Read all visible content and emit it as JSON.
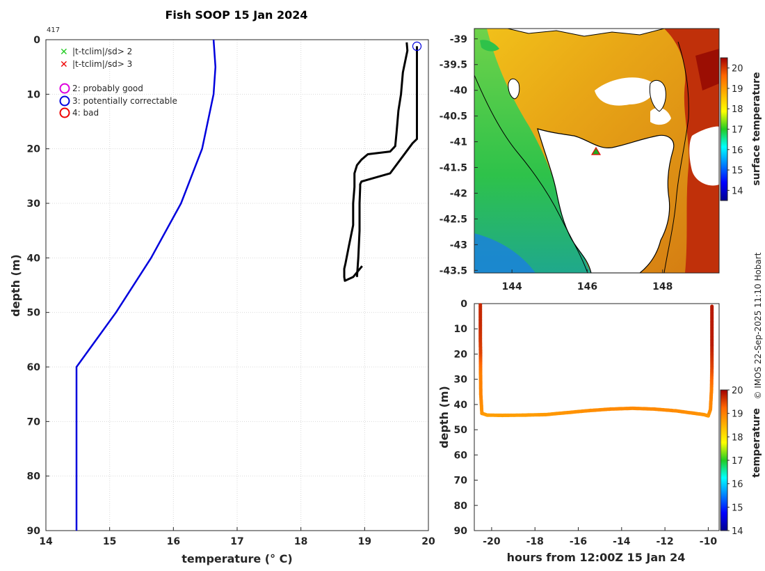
{
  "figure": {
    "title": "Fish SOOP 15 Jan 2024",
    "profile_count": "417",
    "credit": "© IMOS 22-Sep-2025 11:10 Hobart"
  },
  "colors": {
    "climatology": "#0000dd",
    "profile": "#000000",
    "coast": "#000000"
  },
  "chart_data": [
    {
      "type": "line",
      "name": "profile",
      "xlabel": "temperature (° C)",
      "ylabel": "depth (m)",
      "xlim": [
        14,
        20
      ],
      "ylim": [
        0,
        90
      ],
      "xticks": [
        "14",
        "15",
        "16",
        "17",
        "18",
        "19",
        "20"
      ],
      "yticks": [
        "0",
        "10",
        "20",
        "30",
        "40",
        "50",
        "60",
        "70",
        "80",
        "90"
      ],
      "grid": true,
      "legend": {
        "placement": "top-left",
        "entries": [
          {
            "marker": "x",
            "color": "#22cc22",
            "label": "|t-tclim|/sd> 2"
          },
          {
            "marker": "x",
            "color": "#ee0000",
            "label": "|t-tclim|/sd> 3"
          },
          {
            "marker": "o",
            "color": "#dd00dd",
            "label": "2: probably good"
          },
          {
            "marker": "o",
            "color": "#0000dd",
            "label": "3: potentially correctable"
          },
          {
            "marker": "o",
            "color": "#ee0000",
            "label": "4: bad"
          }
        ]
      },
      "series": [
        {
          "name": "climatology",
          "x": [
            16.63,
            16.66,
            16.63,
            16.45,
            16.12,
            15.65,
            15.1,
            14.48,
            14.48,
            14.48
          ],
          "y": [
            0,
            5,
            10,
            20,
            30,
            40,
            50,
            60,
            70,
            90
          ]
        },
        {
          "name": "down cast",
          "x": [
            19.66,
            19.67,
            19.6,
            19.57,
            19.53,
            19.5,
            19.48,
            19.4,
            19.05,
            18.95,
            18.88,
            18.84,
            18.84,
            18.82,
            18.82,
            18.75,
            18.7,
            18.68,
            18.68,
            18.69,
            18.82,
            18.96
          ],
          "y": [
            0.5,
            2,
            6,
            10,
            13,
            17,
            19.5,
            20.5,
            21,
            22,
            23,
            24.5,
            27,
            30,
            34,
            38,
            41,
            42,
            43.5,
            44.2,
            43.5,
            41.5
          ]
        },
        {
          "name": "up cast",
          "x": [
            18.88,
            18.9,
            18.92,
            18.92,
            18.93,
            18.93,
            18.95,
            19.4,
            19.75,
            19.82,
            19.82,
            19.82
          ],
          "y": [
            43.5,
            40,
            35,
            30,
            27,
            26.5,
            26,
            24.5,
            19,
            18.2,
            8,
            1.2
          ]
        }
      ],
      "qc_marker": {
        "flag": "3: potentially correctable",
        "x": 19.82,
        "y": 1.2
      }
    },
    {
      "type": "heatmap",
      "name": "surface temperature map",
      "xticks": [
        "144",
        "146",
        "148"
      ],
      "yticks": [
        "-39",
        "-39.5",
        "-40",
        "-40.5",
        "-41",
        "-41.5",
        "-42",
        "-42.5",
        "-43",
        "-43.5"
      ],
      "xlim": [
        143,
        149.5
      ],
      "ylim": [
        -43.55,
        -38.8
      ],
      "colorbar": {
        "label": "surface temperature",
        "range": [
          13.5,
          20.5
        ],
        "ticks": [
          "14",
          "15",
          "16",
          "17",
          "18",
          "19",
          "20"
        ]
      },
      "location_marker": {
        "lon": 146.28,
        "lat": -41.05
      }
    },
    {
      "type": "scatter",
      "name": "depth vs time",
      "xlabel": "hours from 12:00Z 15 Jan 24",
      "ylabel": "depth (m)",
      "xlim": [
        -20.8,
        -9.5
      ],
      "ylim": [
        0,
        90
      ],
      "xticks": [
        "-20",
        "-18",
        "-16",
        "-14",
        "-12",
        "-10"
      ],
      "yticks": [
        "0",
        "10",
        "20",
        "30",
        "40",
        "50",
        "60",
        "70",
        "80",
        "90"
      ],
      "colorbar": {
        "label": "temperature",
        "range": [
          14,
          20
        ],
        "ticks": [
          "14",
          "15",
          "16",
          "17",
          "18",
          "19",
          "20"
        ]
      },
      "x": [
        -20.52,
        -20.52,
        -20.52,
        -20.51,
        -20.51,
        -20.5,
        -20.45,
        -20.2,
        -19.5,
        -18.5,
        -17.5,
        -16.5,
        -15.5,
        -14.5,
        -13.5,
        -12.5,
        -11.5,
        -10.8,
        -10.2,
        -10.0,
        -9.9,
        -9.85,
        -9.83,
        -9.83,
        -9.83
      ],
      "y": [
        0.5,
        8,
        15,
        20,
        28,
        36,
        43.5,
        44.2,
        44.3,
        44.2,
        44.0,
        43.2,
        42.4,
        41.8,
        41.5,
        41.8,
        42.5,
        43.3,
        44.0,
        44.5,
        42,
        34,
        25,
        16,
        0.5
      ],
      "temperature": [
        19.7,
        19.7,
        19.6,
        19.5,
        19.0,
        18.95,
        18.8,
        18.7,
        18.7,
        18.7,
        18.75,
        18.8,
        18.85,
        18.9,
        18.9,
        18.9,
        18.88,
        18.85,
        18.8,
        18.75,
        18.9,
        19.0,
        19.5,
        19.8,
        19.82
      ]
    }
  ]
}
